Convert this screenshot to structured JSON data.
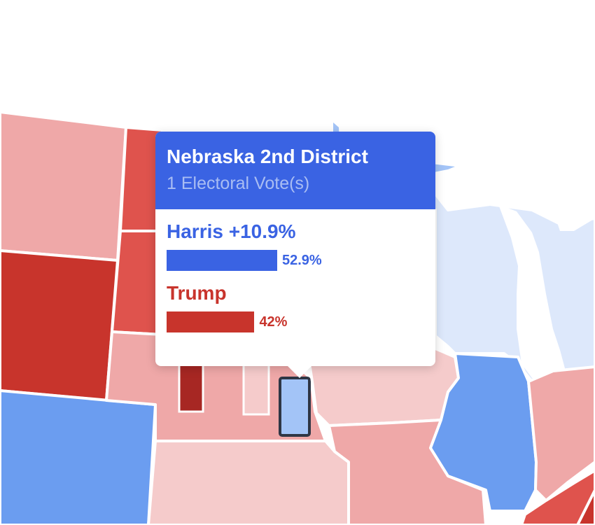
{
  "tooltip": {
    "title": "Nebraska 2nd District",
    "subtitle": "1 Electoral Vote(s)",
    "candidates": [
      {
        "name": "Harris +10.9%",
        "percent_label": "52.9%",
        "share": 52.9,
        "color": "#3a63e3"
      },
      {
        "name": "Trump",
        "percent_label": "42%",
        "share": 42.0,
        "color": "#c8342c"
      }
    ]
  },
  "colors": {
    "solid_dem": "#6b9df0",
    "lean_dem": "#a3c4f7",
    "tilt_dem": "#dde8fb",
    "solid_rep": "#c8342c",
    "likely_rep": "#df534d",
    "lean_rep": "#efa8a8",
    "tilt_rep": "#f5cbcb",
    "dark_rep": "#a72723",
    "lakes": "#a3c4f7",
    "border": "#ffffff",
    "highlight": "#2f3645"
  }
}
